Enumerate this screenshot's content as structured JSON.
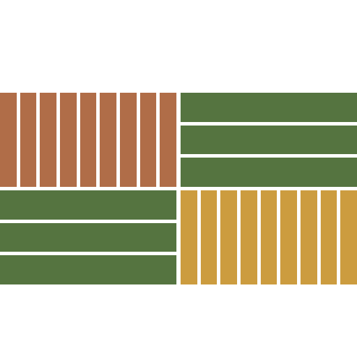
{
  "pattern": {
    "colors": {
      "orange": "#b06d48",
      "green": "#557440",
      "yellow": "#cc9c3f",
      "background": "#ffffff"
    },
    "quadrants": [
      {
        "id": "q-top-left",
        "orientation": "vertical",
        "stripe_count": 9,
        "color": "orange"
      },
      {
        "id": "q-top-right",
        "orientation": "horizontal",
        "stripe_count": 3,
        "color": "green"
      },
      {
        "id": "q-bottom-left",
        "orientation": "horizontal",
        "stripe_count": 3,
        "color": "green"
      },
      {
        "id": "q-bottom-right",
        "orientation": "vertical",
        "stripe_count": 9,
        "color": "yellow"
      }
    ]
  }
}
